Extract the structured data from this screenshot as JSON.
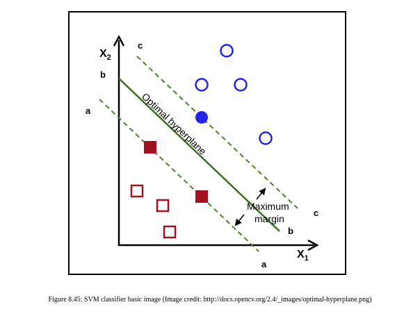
{
  "diagram": {
    "axis_x_label": "X",
    "axis_x_subscript": "1",
    "axis_y_label": "X",
    "axis_y_subscript": "2",
    "hyperplane_label": "Optimal hyperplane",
    "margin_label_line1": "Maximum",
    "margin_label_line2": "margin",
    "line_labels": {
      "c_top": "c",
      "c_right": "c",
      "b_left": "b",
      "b_right": "b",
      "a_left": "a",
      "a_bottom": "a"
    },
    "colors": {
      "hyperplane": "#3d6b1f",
      "margin_lines": "#4e7d2e",
      "class_circle": "#2323e8",
      "class_square": "#a3111f",
      "axes": "#000000"
    },
    "classes": {
      "circles": {
        "open_count": 4,
        "filled_count": 1
      },
      "squares": {
        "open_count": 3,
        "filled_count": 2
      }
    }
  },
  "caption": "Figure 8.45: SVM classifier basic image (Image credit: http://docs.opencv.org/2.4/_images/optimal-hyperplane.png)"
}
